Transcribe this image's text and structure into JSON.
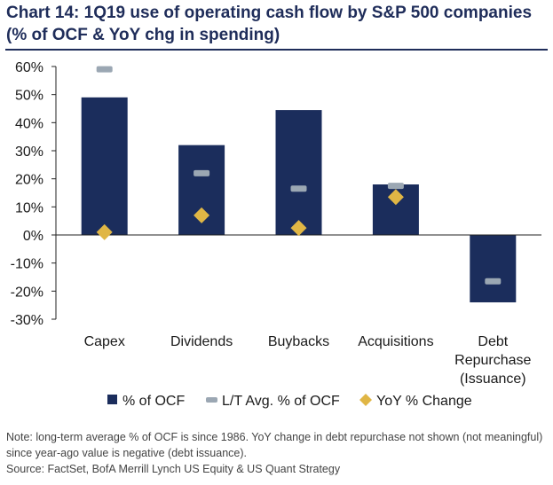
{
  "title": "Chart 14: 1Q19  use of operating cash flow by S&P 500 companies (% of OCF & YoY chg in spending)",
  "notes": [
    "Note: long-term average % of OCF is since 1986.  YoY change in debt repurchase not shown (not meaningful) since year-ago value is negative (debt issuance).",
    "Source: FactSet, BofA Merrill Lynch US Equity & US Quant Strategy"
  ],
  "colors": {
    "bar": "#1b2d5c",
    "avg": "#9ba7b3",
    "yoy": "#e0b645",
    "title": "#1f2d5a"
  },
  "chart_data": {
    "type": "bar",
    "categories": [
      [
        "Capex"
      ],
      [
        "Dividends"
      ],
      [
        "Buybacks"
      ],
      [
        "Acquisitions"
      ],
      [
        "Debt",
        "Repurchase",
        "(Issuance)"
      ]
    ],
    "series": [
      {
        "name": "% of OCF",
        "kind": "bar",
        "values": [
          49,
          32,
          44.5,
          18,
          -24
        ]
      },
      {
        "name": "L/T Avg. % of OCF",
        "kind": "dash",
        "values": [
          59,
          22,
          16.5,
          17.5,
          -16.5
        ]
      },
      {
        "name": "YoY % Change",
        "kind": "diamond",
        "values": [
          1,
          7,
          2.5,
          13.5,
          null
        ]
      }
    ],
    "ylim": [
      -30,
      60
    ],
    "yticks": [
      -30,
      -20,
      -10,
      0,
      10,
      20,
      30,
      40,
      50,
      60
    ],
    "ytick_labels": [
      "-30%",
      "-20%",
      "-10%",
      "0%",
      "10%",
      "20%",
      "30%",
      "40%",
      "50%",
      "60%"
    ],
    "legend": [
      "% of OCF",
      "L/T Avg. % of OCF",
      "YoY % Change"
    ],
    "legend_position": "bottom",
    "grid": false
  }
}
